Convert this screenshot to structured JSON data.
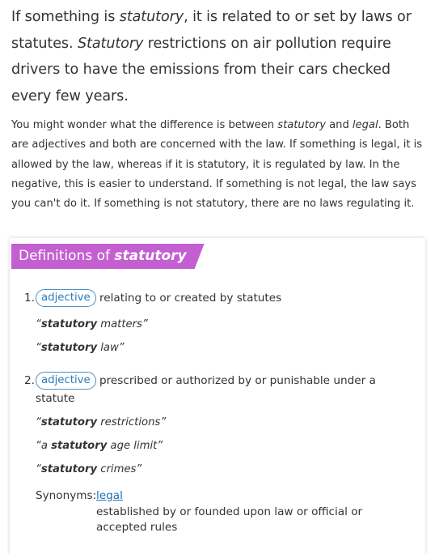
{
  "blurb": {
    "short": {
      "p1": "If something is ",
      "em1": "statutory",
      "p2": ", it is related to or set by laws or statutes. ",
      "em2": "Statutory",
      "p3": " restrictions on air pollution require drivers to have the emissions from their cars checked every few years."
    },
    "long": {
      "p1": "You might wonder what the difference is between ",
      "em1": "statutory",
      "p2": " and ",
      "em2": "legal",
      "p3": ". Both are adjectives and both are concerned with the law. If something is legal, it is allowed by the law, whereas if it is statutory, it is regulated by law. In the negative, this is easier to understand. If something is not legal, the law says you can't do it. If something is not statutory, there are no laws regulating it."
    }
  },
  "definitions": {
    "heading_prefix": "Definitions of ",
    "heading_word": "statutory",
    "senses": [
      {
        "number": "1.",
        "pos": "adjective",
        "text": "relating to or created by statutes",
        "examples": [
          {
            "word": "statutory",
            "rest": " matters"
          },
          {
            "word": "statutory",
            "rest": " law"
          }
        ]
      },
      {
        "number": "2.",
        "pos": "adjective",
        "text": "prescribed or authorized by or punishable under a statute",
        "examples": [
          {
            "pre": "",
            "word": "statutory",
            "rest": " restrictions"
          },
          {
            "pre": "a ",
            "word": "statutory",
            "rest": " age limit"
          },
          {
            "pre": "",
            "word": "statutory",
            "rest": " crimes"
          }
        ],
        "synonyms_label": "Synonyms:",
        "synonym": "legal",
        "synonym_def": "established by or founded upon law or official or accepted rules"
      }
    ]
  },
  "colors": {
    "heading_bg": "#c35fd0",
    "pos_border": "#4e90c5",
    "link": "#1d6fb5"
  }
}
